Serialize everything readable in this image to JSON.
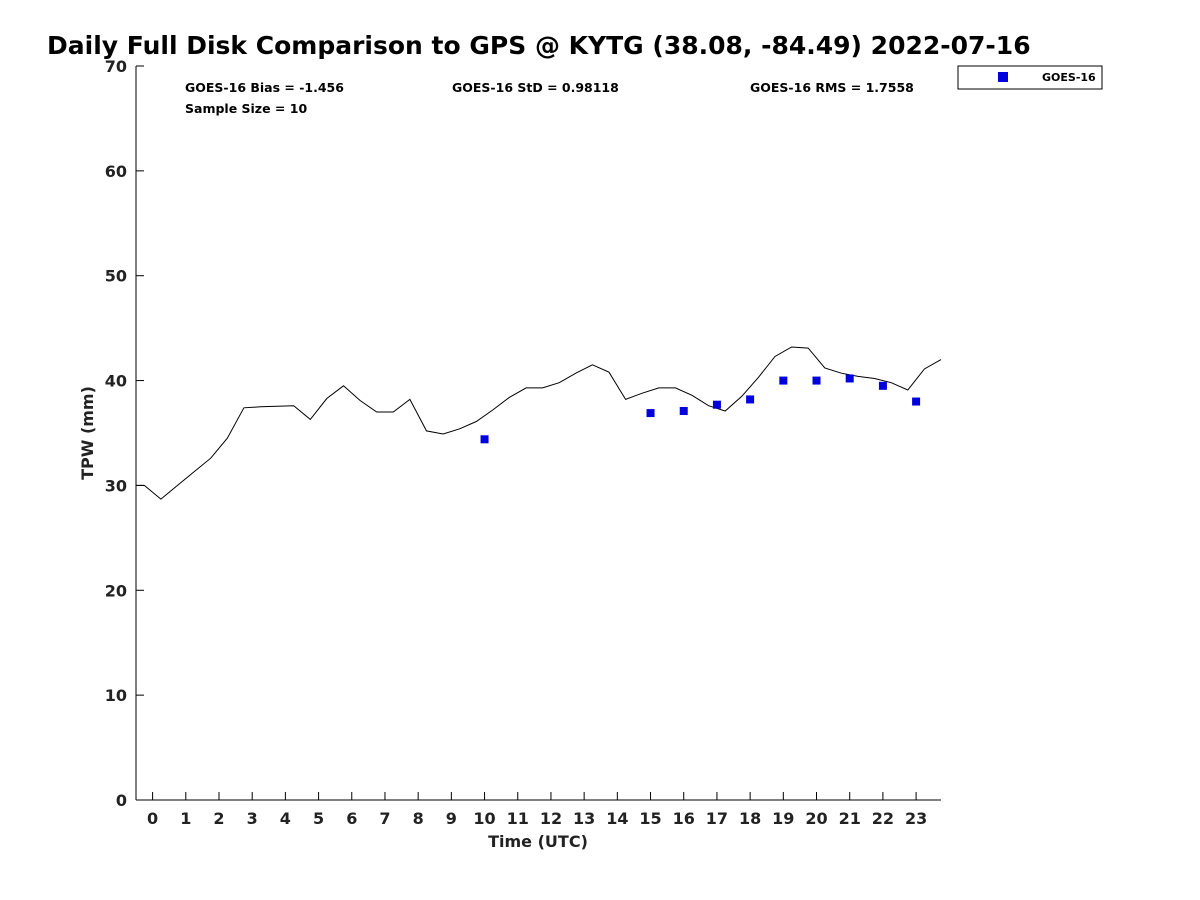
{
  "chart_data": {
    "type": "line",
    "title": "Daily Full Disk Comparison to GPS @ KYTG (38.08, -84.49) 2022-07-16",
    "xlabel": "Time (UTC)",
    "ylabel": "TPW (mm)",
    "xlim": [
      -0.5,
      23.75
    ],
    "ylim": [
      0,
      70
    ],
    "xticks": [
      0,
      1,
      2,
      3,
      4,
      5,
      6,
      7,
      8,
      9,
      10,
      11,
      12,
      13,
      14,
      15,
      16,
      17,
      18,
      19,
      20,
      21,
      22,
      23
    ],
    "xtick_labels": [
      "0",
      "1",
      "2",
      "3",
      "4",
      "5",
      "6",
      "7",
      "8",
      "9",
      "10",
      "11",
      "12",
      "13",
      "14",
      "15",
      "16",
      "17",
      "18",
      "19",
      "20",
      "21",
      "22",
      "23"
    ],
    "yticks": [
      0,
      10,
      20,
      30,
      40,
      50,
      60,
      70
    ],
    "ytick_labels": [
      "0",
      "10",
      "20",
      "30",
      "40",
      "50",
      "60",
      "70"
    ],
    "grid": false,
    "legend_position": "top-right, outside plot",
    "stats": {
      "bias": "GOES-16 Bias = -1.456",
      "std": "GOES-16 StD = 0.98118",
      "rms": "GOES-16 RMS = 1.7558",
      "sample": "Sample Size = 10"
    },
    "series": [
      {
        "kind": "line",
        "color": "#000000",
        "x": [
          -0.5,
          -0.25,
          0.25,
          0.75,
          1.25,
          1.75,
          2.25,
          2.75,
          3.25,
          3.75,
          4.25,
          4.75,
          5.25,
          5.75,
          6.25,
          6.75,
          7.25,
          7.75,
          8.25,
          8.75,
          9.25,
          9.75,
          10.25,
          10.75,
          11.25,
          11.75,
          12.25,
          12.75,
          13.25,
          13.75,
          14.25,
          14.75,
          15.25,
          15.75,
          16.25,
          16.75,
          17.25,
          17.75,
          18.25,
          18.75,
          19.25,
          19.75,
          20.25,
          20.75,
          21.25,
          21.75,
          22.25,
          22.75,
          23.25,
          23.75
        ],
        "y": [
          30,
          30,
          28.7,
          30,
          31.3,
          32.6,
          34.5,
          37.4,
          37.5,
          37.55,
          37.6,
          36.3,
          38.3,
          39.5,
          38.1,
          37,
          37,
          38.2,
          35.2,
          34.9,
          35.4,
          36.1,
          37.2,
          38.4,
          39.3,
          39.3,
          39.8,
          40.7,
          41.5,
          40.8,
          38.2,
          38.8,
          39.3,
          39.3,
          38.6,
          37.6,
          37.1,
          38.5,
          40.3,
          42.3,
          43.2,
          43.1,
          41.2,
          40.7,
          40.4,
          40.2,
          39.8,
          39.1,
          41.1,
          42
        ]
      },
      {
        "kind": "scatter",
        "name": "GOES-16",
        "color": "#0000dd",
        "x": [
          10,
          15,
          16,
          17,
          18,
          19,
          20,
          21,
          22,
          23
        ],
        "y": [
          34.4,
          36.9,
          37.1,
          37.7,
          38.2,
          40.0,
          40.0,
          40.2,
          39.5,
          38.0
        ]
      }
    ]
  }
}
